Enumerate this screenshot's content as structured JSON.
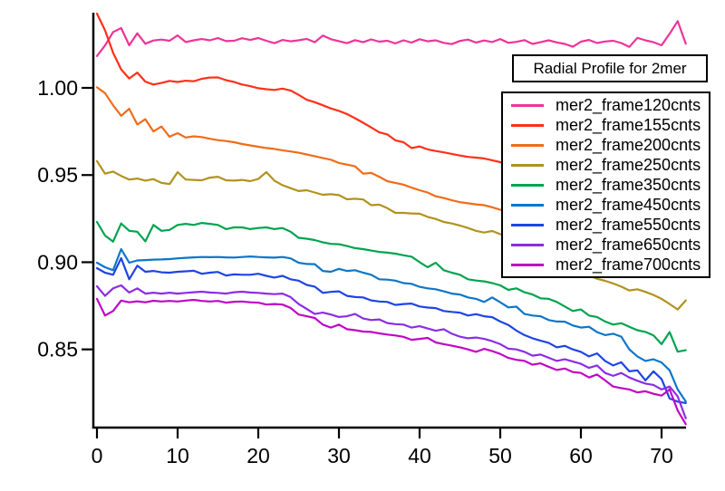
{
  "chart_data": {
    "type": "line",
    "title": "Radial Profile for 2mer",
    "xlabel": "",
    "ylabel": "",
    "xlim": [
      -0.35,
      73.35
    ],
    "ylim": [
      0.8054,
      1.0426
    ],
    "grid": false,
    "legend_position": "upper right",
    "x_ticks": [
      0,
      10,
      20,
      30,
      40,
      50,
      60,
      70
    ],
    "x_tick_labels": [
      "0",
      "10",
      "20",
      "30",
      "40",
      "50",
      "60",
      "70"
    ],
    "y_ticks": [
      0.85,
      0.9,
      0.95,
      1.0
    ],
    "y_tick_labels": [
      "0.85",
      "0.90",
      "0.95",
      "1.00"
    ],
    "axis_color": "#000000",
    "x_start": 0,
    "x_step": 1,
    "series": [
      {
        "name": "mer2_frame120cnts",
        "color": "#EF3399",
        "values": [
          1.0183,
          1.0243,
          1.032,
          1.0343,
          1.0244,
          1.0313,
          1.0253,
          1.0272,
          1.0277,
          1.027,
          1.0301,
          1.0263,
          1.0273,
          1.028,
          1.0273,
          1.0286,
          1.0268,
          1.027,
          1.0285,
          1.0275,
          1.0286,
          1.027,
          1.0256,
          1.0275,
          1.0267,
          1.0273,
          1.0281,
          1.0262,
          1.03,
          1.0279,
          1.0268,
          1.0256,
          1.0274,
          1.0262,
          1.0278,
          1.0265,
          1.027,
          1.0255,
          1.0273,
          1.026,
          1.0279,
          1.0267,
          1.0273,
          1.0258,
          1.0251,
          1.0269,
          1.0277,
          1.026,
          1.0272,
          1.0263,
          1.028,
          1.0258,
          1.0264,
          1.0274,
          1.0252,
          1.0262,
          1.0273,
          1.0261,
          1.0252,
          1.0236,
          1.0265,
          1.0275,
          1.0257,
          1.0266,
          1.027,
          1.0257,
          1.0235,
          1.0287,
          1.0273,
          1.0262,
          1.0244,
          1.031,
          1.0383,
          1.0253
        ]
      },
      {
        "name": "mer2_frame155cnts",
        "color": "#FF3019",
        "values": [
          1.0426,
          1.033,
          1.0201,
          1.0106,
          1.0054,
          1.0088,
          1.0036,
          1.0019,
          1.0028,
          1.004,
          1.0034,
          1.0041,
          1.0038,
          1.0052,
          1.0059,
          1.006,
          1.0044,
          1.0034,
          1.0019,
          1.001,
          0.9998,
          0.9992,
          0.9988,
          0.9996,
          0.9985,
          0.996,
          0.9932,
          0.9918,
          0.99,
          0.9882,
          0.9868,
          0.985,
          0.9826,
          0.98,
          0.9773,
          0.9745,
          0.9733,
          0.9699,
          0.9688,
          0.9655,
          0.9664,
          0.9647,
          0.9638,
          0.963,
          0.9621,
          0.9612,
          0.9604,
          0.96,
          0.9595,
          0.9585,
          0.9574,
          0.9563,
          0.9556,
          0.9548,
          0.9541,
          0.9533,
          0.9526,
          0.9519,
          0.9511,
          0.9504,
          0.9496,
          0.9489,
          0.9482,
          0.9474,
          0.9467,
          0.9459,
          0.9452,
          0.9445,
          0.9437,
          0.943,
          0.9422,
          0.9415,
          0.9408,
          0.94
        ]
      },
      {
        "name": "mer2_frame200cnts",
        "color": "#EF6C1A",
        "values": [
          1.0003,
          0.997,
          0.99,
          0.984,
          0.988,
          0.979,
          0.982,
          0.975,
          0.9778,
          0.972,
          0.974,
          0.9715,
          0.9722,
          0.9718,
          0.9708,
          0.97,
          0.9695,
          0.9688,
          0.9678,
          0.967,
          0.9662,
          0.9655,
          0.965,
          0.9642,
          0.9635,
          0.9628,
          0.9618,
          0.9608,
          0.9598,
          0.9588,
          0.9569,
          0.956,
          0.955,
          0.9508,
          0.9512,
          0.949,
          0.9465,
          0.9455,
          0.9445,
          0.9428,
          0.9413,
          0.94,
          0.9378,
          0.9368,
          0.9355,
          0.9344,
          0.9338,
          0.9332,
          0.9327,
          0.9315,
          0.9301,
          0.9292,
          0.9284,
          0.9275,
          0.9266,
          0.9258,
          0.9249,
          0.924,
          0.9232,
          0.9223,
          0.9214,
          0.9206,
          0.9197,
          0.9188,
          0.918,
          0.9171,
          0.9162,
          0.9154,
          0.9145,
          0.9136,
          0.9128,
          0.9119,
          0.911,
          0.9102
        ]
      },
      {
        "name": "mer2_frame250cnts",
        "color": "#B2921E",
        "values": [
          0.958,
          0.9508,
          0.952,
          0.9495,
          0.9474,
          0.948,
          0.9468,
          0.9477,
          0.9455,
          0.9448,
          0.9517,
          0.9474,
          0.9472,
          0.947,
          0.9485,
          0.949,
          0.947,
          0.9468,
          0.9472,
          0.9465,
          0.9478,
          0.9517,
          0.9468,
          0.9442,
          0.9425,
          0.9408,
          0.9413,
          0.94,
          0.9387,
          0.939,
          0.9385,
          0.9361,
          0.9364,
          0.936,
          0.9327,
          0.933,
          0.931,
          0.9283,
          0.9283,
          0.928,
          0.9278,
          0.926,
          0.9248,
          0.9231,
          0.9222,
          0.921,
          0.9196,
          0.918,
          0.917,
          0.9179,
          0.9161,
          0.9144,
          0.9122,
          0.91,
          0.9078,
          0.9056,
          0.9034,
          0.9012,
          0.899,
          0.8968,
          0.8946,
          0.8924,
          0.8905,
          0.8893,
          0.8878,
          0.886,
          0.8838,
          0.8845,
          0.883,
          0.8812,
          0.879,
          0.876,
          0.8729,
          0.8781
        ]
      },
      {
        "name": "mer2_frame350cnts",
        "color": "#00A44F",
        "values": [
          0.9231,
          0.9153,
          0.9118,
          0.9222,
          0.918,
          0.9175,
          0.912,
          0.9214,
          0.918,
          0.9185,
          0.9214,
          0.922,
          0.9214,
          0.9225,
          0.922,
          0.9214,
          0.919,
          0.92,
          0.92,
          0.919,
          0.9196,
          0.92,
          0.919,
          0.9196,
          0.9175,
          0.914,
          0.9135,
          0.9127,
          0.9114,
          0.9105,
          0.9103,
          0.9093,
          0.9081,
          0.9075,
          0.9067,
          0.9059,
          0.9055,
          0.9049,
          0.904,
          0.9032,
          0.9,
          0.8971,
          0.8997,
          0.8954,
          0.894,
          0.8928,
          0.8902,
          0.8895,
          0.889,
          0.888,
          0.8867,
          0.8841,
          0.885,
          0.8828,
          0.8815,
          0.8793,
          0.879,
          0.8772,
          0.8746,
          0.872,
          0.8729,
          0.8694,
          0.8686,
          0.866,
          0.8642,
          0.865,
          0.863,
          0.861,
          0.86,
          0.858,
          0.853,
          0.8599,
          0.8487,
          0.8495
        ]
      },
      {
        "name": "mer2_frame450cnts",
        "color": "#0D76C9",
        "values": [
          0.8997,
          0.8971,
          0.8954,
          0.9075,
          0.8997,
          0.901,
          0.9012,
          0.9015,
          0.9016,
          0.9018,
          0.9022,
          0.9025,
          0.9028,
          0.903,
          0.9029,
          0.903,
          0.9028,
          0.9027,
          0.903,
          0.9033,
          0.903,
          0.9028,
          0.9026,
          0.903,
          0.9022,
          0.8997,
          0.899,
          0.8989,
          0.895,
          0.8945,
          0.8962,
          0.895,
          0.8954,
          0.894,
          0.8928,
          0.8902,
          0.89,
          0.8894,
          0.888,
          0.8876,
          0.8859,
          0.885,
          0.8845,
          0.8833,
          0.882,
          0.8815,
          0.8798,
          0.879,
          0.8772,
          0.8798,
          0.877,
          0.8741,
          0.8745,
          0.8703,
          0.8694,
          0.869,
          0.8668,
          0.866,
          0.8659,
          0.8637,
          0.8625,
          0.863,
          0.8599,
          0.8582,
          0.859,
          0.8573,
          0.85,
          0.846,
          0.8434,
          0.8443,
          0.8425,
          0.838,
          0.827,
          0.8201
        ]
      },
      {
        "name": "mer2_frame550cnts",
        "color": "#1E45E4",
        "values": [
          0.8966,
          0.894,
          0.8928,
          0.9023,
          0.8902,
          0.898,
          0.8945,
          0.895,
          0.8942,
          0.894,
          0.8945,
          0.8948,
          0.8951,
          0.8934,
          0.894,
          0.8944,
          0.8924,
          0.893,
          0.8928,
          0.8928,
          0.8934,
          0.8922,
          0.8912,
          0.8922,
          0.8902,
          0.8894,
          0.887,
          0.886,
          0.8824,
          0.883,
          0.8833,
          0.8807,
          0.88,
          0.8798,
          0.8781,
          0.8775,
          0.8772,
          0.8755,
          0.876,
          0.8763,
          0.8746,
          0.874,
          0.8737,
          0.872,
          0.8715,
          0.8711,
          0.8694,
          0.8702,
          0.869,
          0.8685,
          0.866,
          0.864,
          0.8608,
          0.8582,
          0.8564,
          0.855,
          0.8538,
          0.8512,
          0.852,
          0.85,
          0.8486,
          0.846,
          0.8477,
          0.8434,
          0.8408,
          0.8426,
          0.8374,
          0.838,
          0.8322,
          0.8374,
          0.833,
          0.8218,
          0.82,
          0.8192
        ]
      },
      {
        "name": "mer2_frame650cnts",
        "color": "#8B2DE4",
        "values": [
          0.8862,
          0.8807,
          0.885,
          0.8867,
          0.8826,
          0.885,
          0.882,
          0.8825,
          0.882,
          0.8825,
          0.882,
          0.8824,
          0.8828,
          0.8831,
          0.8826,
          0.8824,
          0.882,
          0.8828,
          0.8831,
          0.8826,
          0.8824,
          0.882,
          0.8817,
          0.882,
          0.88,
          0.876,
          0.8732,
          0.8703,
          0.8711,
          0.87,
          0.8686,
          0.869,
          0.8703,
          0.8677,
          0.8668,
          0.8672,
          0.8651,
          0.8645,
          0.8642,
          0.8625,
          0.8633,
          0.862,
          0.8607,
          0.8616,
          0.859,
          0.8573,
          0.8564,
          0.8568,
          0.856,
          0.8547,
          0.853,
          0.8504,
          0.85,
          0.8486,
          0.8464,
          0.847,
          0.8452,
          0.8434,
          0.8443,
          0.843,
          0.8417,
          0.8394,
          0.8408,
          0.8365,
          0.8348,
          0.8365,
          0.8339,
          0.832,
          0.8304,
          0.8296,
          0.827,
          0.8287,
          0.823,
          0.8105
        ]
      },
      {
        "name": "mer2_frame700cnts",
        "color": "#BF06C6",
        "values": [
          0.879,
          0.8694,
          0.872,
          0.878,
          0.877,
          0.8776,
          0.877,
          0.8779,
          0.8775,
          0.8778,
          0.8775,
          0.878,
          0.8784,
          0.8778,
          0.8775,
          0.8778,
          0.8768,
          0.8773,
          0.8775,
          0.877,
          0.8768,
          0.8757,
          0.876,
          0.8757,
          0.8738,
          0.87,
          0.869,
          0.868,
          0.8642,
          0.8625,
          0.8642,
          0.8616,
          0.861,
          0.8602,
          0.86,
          0.8592,
          0.8585,
          0.858,
          0.8572,
          0.8555,
          0.856,
          0.8566,
          0.854,
          0.853,
          0.8521,
          0.8512,
          0.85,
          0.8486,
          0.8503,
          0.849,
          0.8474,
          0.8451,
          0.844,
          0.8434,
          0.8412,
          0.842,
          0.84,
          0.8382,
          0.839,
          0.837,
          0.8365,
          0.8339,
          0.8356,
          0.8322,
          0.8287,
          0.8278,
          0.827,
          0.8253,
          0.826,
          0.8245,
          0.8235,
          0.827,
          0.8149,
          0.8071
        ]
      }
    ]
  }
}
